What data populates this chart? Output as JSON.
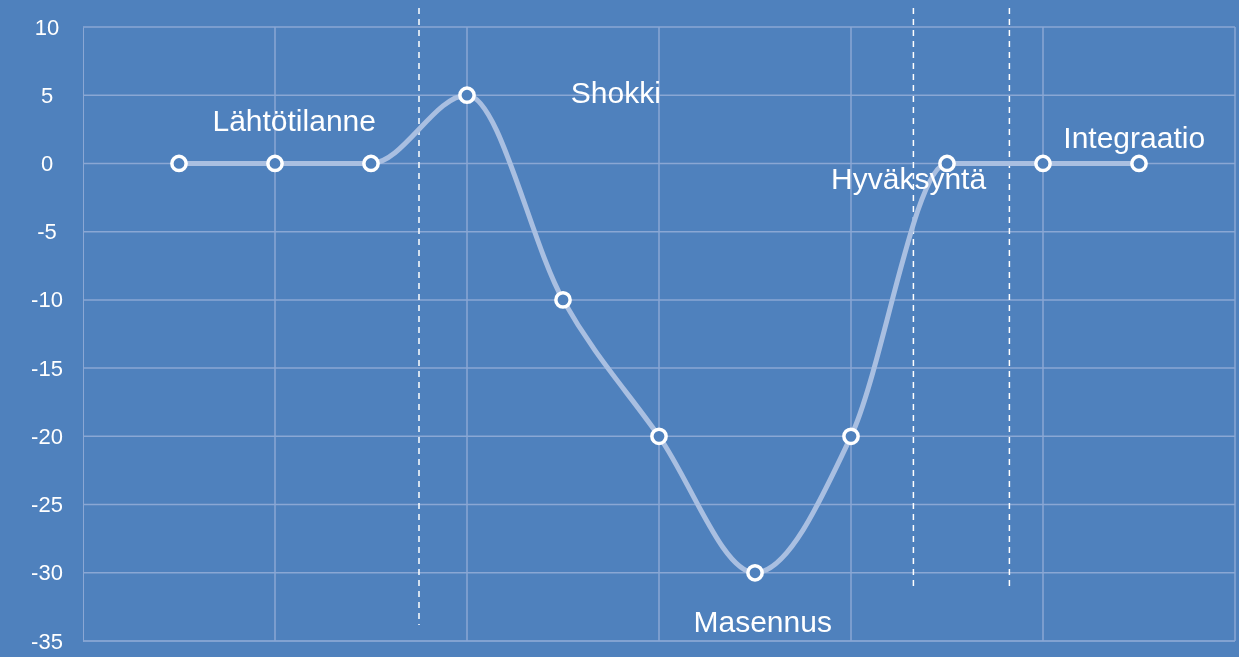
{
  "chart_data": {
    "type": "line",
    "categories": [
      null,
      null,
      null,
      null,
      null,
      null,
      null,
      null,
      null,
      null,
      null
    ],
    "series": [
      {
        "color": "#a9bfe1",
        "values": [
          0,
          0,
          0,
          5,
          -10,
          -20,
          -30,
          -20,
          0,
          0,
          0
        ]
      }
    ],
    "ylim": [
      -35,
      10
    ],
    "yticks": [
      -35,
      -30,
      -25,
      -20,
      -15,
      -10,
      -5,
      0,
      5,
      10
    ],
    "tick_labels": "y",
    "grid": true,
    "marker": "circle",
    "line_style": "solid",
    "annotations": [
      "Lähtötilanne",
      "Shokki",
      "Masennus",
      "Hyväksyntä",
      "Integraatio"
    ]
  }
}
